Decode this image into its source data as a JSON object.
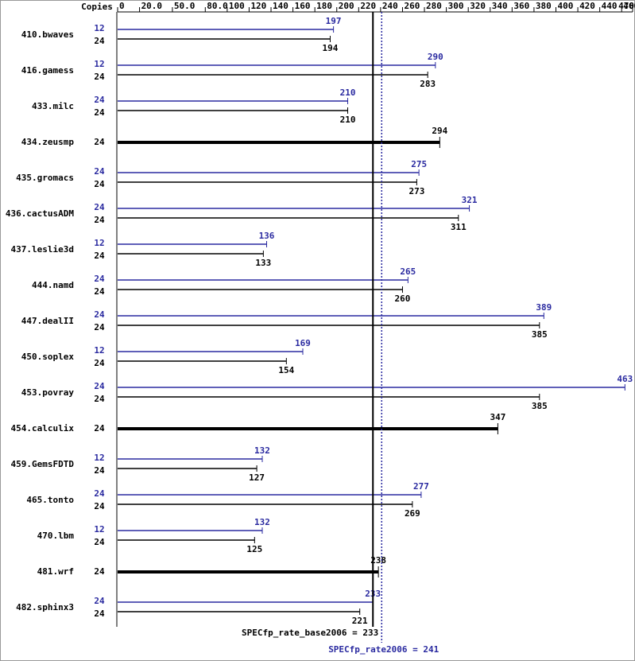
{
  "chart_data": {
    "type": "bar",
    "orientation": "horizontal",
    "copies_label": "Copies",
    "categories": [
      "410.bwaves",
      "416.gamess",
      "433.milc",
      "434.zeusmp",
      "435.gromacs",
      "436.cactusADM",
      "437.leslie3d",
      "444.namd",
      "447.dealII",
      "450.soplex",
      "453.povray",
      "454.calculix",
      "459.GemsFDTD",
      "465.tonto",
      "470.lbm",
      "481.wrf",
      "482.sphinx3"
    ],
    "series": [
      {
        "color": "#2a2aa0",
        "copies": [
          12,
          12,
          24,
          null,
          24,
          24,
          12,
          24,
          24,
          12,
          24,
          null,
          12,
          24,
          12,
          null,
          24
        ],
        "values": [
          197,
          290,
          210,
          null,
          275,
          321,
          136,
          265,
          389,
          169,
          463,
          null,
          132,
          277,
          132,
          null,
          233
        ]
      },
      {
        "color": "#000000",
        "copies": [
          24,
          24,
          24,
          24,
          24,
          24,
          24,
          24,
          24,
          24,
          24,
          24,
          24,
          24,
          24,
          24,
          24
        ],
        "values": [
          194,
          283,
          210,
          294,
          273,
          311,
          133,
          260,
          385,
          154,
          385,
          347,
          127,
          269,
          125,
          238,
          221
        ]
      }
    ],
    "xlim": [
      0,
      470
    ],
    "xticks": [
      0,
      {
        "value": 20,
        "label": "20.0"
      },
      {
        "value": 50,
        "label": "50.0"
      },
      {
        "value": 80,
        "label": "80.0"
      },
      100,
      120,
      140,
      160,
      180,
      200,
      220,
      240,
      260,
      280,
      300,
      320,
      340,
      360,
      380,
      400,
      420,
      440,
      460,
      470
    ],
    "reference_lines": [
      {
        "value": 233,
        "label": "SPECfp_rate_base2006 = 233",
        "color": "#000000",
        "style": "solid"
      },
      {
        "value": 241,
        "label": "SPECfp_rate2006 = 241",
        "color": "#2a2aa0",
        "style": "dotted"
      }
    ]
  }
}
